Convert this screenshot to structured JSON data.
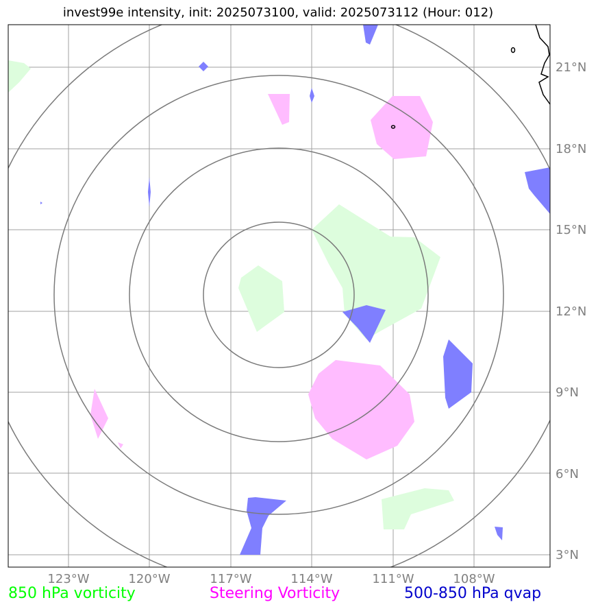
{
  "title": "invest99e intensity, init: 2025073100, valid: 2025073112 (Hour: 012)",
  "map": {
    "lat_labels": [
      "21°N",
      "18°N",
      "15°N",
      "12°N",
      "9°N",
      "6°N",
      "3°N"
    ],
    "lon_labels": [
      "123°W",
      "120°W",
      "117°W",
      "114°W",
      "111°W",
      "108°W"
    ],
    "colors": {
      "vort850": "#ddfddd",
      "steering": "#ffbcff",
      "qvap": "#7f7fff",
      "rings": "#7a7a7a",
      "grid": "#a0a0a0",
      "coast": "#000000"
    }
  },
  "legend": {
    "vort850": {
      "label": "850 hPa vorticity",
      "color": "#00ff00"
    },
    "steering": {
      "label": "Steering Vorticity",
      "color": "#ff00ff"
    },
    "qvap": {
      "label": "500-850 hPa qvap",
      "color": "#0000cc"
    }
  }
}
